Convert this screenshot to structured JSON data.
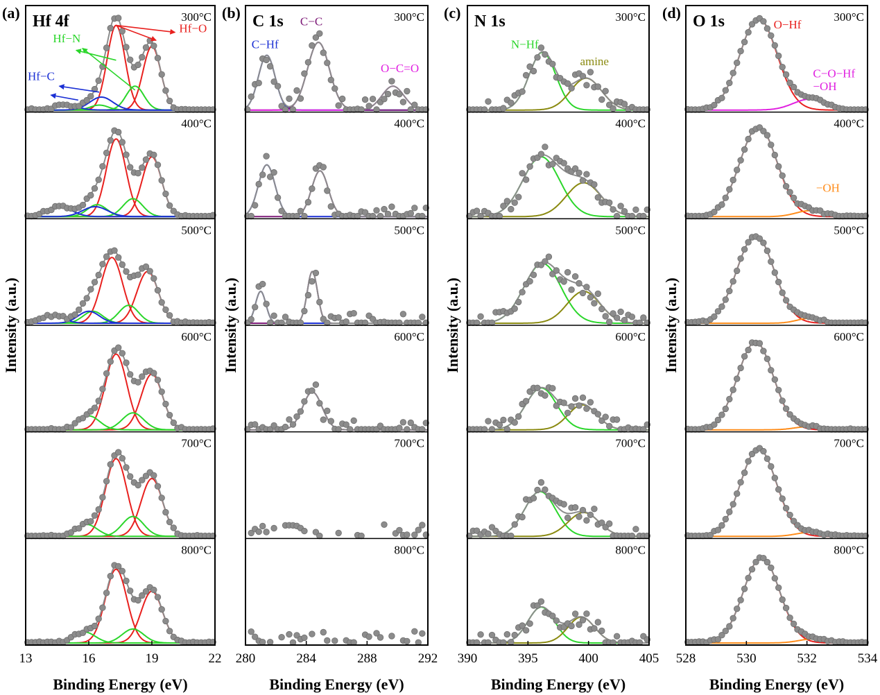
{
  "figure": {
    "background": "#ffffff",
    "frame_color": "#000000",
    "data_point_color": "#8c8c8c",
    "envelope_color": "#8c8c8c"
  },
  "temperatures": [
    "300°C",
    "400°C",
    "500°C",
    "600°C",
    "700°C",
    "800°C"
  ],
  "chart_data": [
    {
      "type": "line",
      "panel_label": "(a)",
      "title": "Hf 4f",
      "xlabel": "Binding Energy (eV)",
      "ylabel": "Intensity (a.u.)",
      "xlim": [
        13,
        22
      ],
      "xticks": [
        {
          "v": 13,
          "t": "13"
        },
        {
          "v": 16,
          "t": "16"
        },
        {
          "v": 19,
          "t": "19"
        },
        {
          "v": 22,
          "t": "22"
        }
      ],
      "temperatures": [
        "300°C",
        "400°C",
        "500°C",
        "600°C",
        "700°C",
        "800°C"
      ],
      "noise": 0.015,
      "annotations": [
        {
          "text": "Hf−O",
          "color": "#e8201e",
          "x": 20.3,
          "y": 0.78
        },
        {
          "text": "Hf−N",
          "color": "#2bd62b",
          "x": 14.3,
          "y": 0.68
        },
        {
          "text": "Hf−C",
          "color": "#1a2fd4",
          "x": 13.1,
          "y": 0.3
        }
      ],
      "arrows": [
        {
          "color": "#e8201e",
          "x1": 17.3,
          "y1": 0.85,
          "x2": 20.1,
          "y2": 0.78
        },
        {
          "color": "#e8201e",
          "x1": 17.3,
          "y1": 0.85,
          "x2": 19.2,
          "y2": 0.7
        },
        {
          "color": "#2bd62b",
          "x1": 17.3,
          "y1": 0.5,
          "x2": 15.4,
          "y2": 0.6
        },
        {
          "color": "#2bd62b",
          "x1": 18.2,
          "y1": 0.2,
          "x2": 15.7,
          "y2": 0.62
        },
        {
          "color": "#1a2fd4",
          "x1": 16.5,
          "y1": 0.18,
          "x2": 14.6,
          "y2": 0.24
        },
        {
          "color": "#1a2fd4",
          "x1": 15.5,
          "y1": 0.1,
          "x2": 14.2,
          "y2": 0.15
        }
      ],
      "spectra": [
        {
          "temperature": "300°C",
          "series": [
            {
              "name": "Hf−O 7/2",
              "color": "#e8201e",
              "center": 17.3,
              "fwhm": 1.0,
              "height": 0.85
            },
            {
              "name": "Hf−O 5/2",
              "color": "#e8201e",
              "center": 19.0,
              "fwhm": 1.0,
              "height": 0.64
            },
            {
              "name": "Hf−N 7/2",
              "color": "#2bd62b",
              "center": 16.5,
              "fwhm": 1.0,
              "height": 0.05
            },
            {
              "name": "Hf−N 5/2",
              "color": "#2bd62b",
              "center": 18.2,
              "fwhm": 1.0,
              "height": 0.24
            },
            {
              "name": "Hf−C 7/2",
              "color": "#1a2fd4",
              "center": 14.9,
              "fwhm": 1.3,
              "height": 0.05
            },
            {
              "name": "Hf−C 5/2",
              "color": "#1a2fd4",
              "center": 16.6,
              "fwhm": 1.3,
              "height": 0.13
            }
          ]
        },
        {
          "temperature": "400°C",
          "series": [
            {
              "name": "Hf−O 7/2",
              "color": "#e8201e",
              "center": 17.3,
              "fwhm": 1.1,
              "height": 0.78
            },
            {
              "name": "Hf−O 5/2",
              "color": "#e8201e",
              "center": 19.0,
              "fwhm": 1.1,
              "height": 0.6
            },
            {
              "name": "Hf−N 7/2",
              "color": "#2bd62b",
              "center": 16.4,
              "fwhm": 1.1,
              "height": 0.12
            },
            {
              "name": "Hf−N 5/2",
              "color": "#2bd62b",
              "center": 18.1,
              "fwhm": 1.1,
              "height": 0.18
            },
            {
              "name": "Hf−C 7/2",
              "color": "#1a2fd4",
              "center": 14.6,
              "fwhm": 1.4,
              "height": 0.1
            },
            {
              "name": "Hf−C 5/2",
              "color": "#1a2fd4",
              "center": 16.3,
              "fwhm": 1.4,
              "height": 0.1
            }
          ]
        },
        {
          "temperature": "500°C",
          "series": [
            {
              "name": "Hf−O 7/2",
              "color": "#e8201e",
              "center": 17.1,
              "fwhm": 1.2,
              "height": 0.66
            },
            {
              "name": "Hf−O 5/2",
              "color": "#e8201e",
              "center": 18.8,
              "fwhm": 1.2,
              "height": 0.52
            },
            {
              "name": "Hf−N 7/2",
              "color": "#2bd62b",
              "center": 16.2,
              "fwhm": 1.1,
              "height": 0.12
            },
            {
              "name": "Hf−N 5/2",
              "color": "#2bd62b",
              "center": 17.9,
              "fwhm": 1.1,
              "height": 0.18
            },
            {
              "name": "Hf−C 7/2",
              "color": "#1a2fd4",
              "center": 14.3,
              "fwhm": 1.2,
              "height": 0.08
            },
            {
              "name": "Hf−C 5/2",
              "color": "#1a2fd4",
              "center": 16.0,
              "fwhm": 1.2,
              "height": 0.12
            }
          ]
        },
        {
          "temperature": "600°C",
          "series": [
            {
              "name": "Hf−O 7/2",
              "color": "#e8201e",
              "center": 17.3,
              "fwhm": 1.2,
              "height": 0.76
            },
            {
              "name": "Hf−O 5/2",
              "color": "#e8201e",
              "center": 19.0,
              "fwhm": 1.2,
              "height": 0.56
            },
            {
              "name": "Hf−N 7/2",
              "color": "#2bd62b",
              "center": 16.0,
              "fwhm": 1.2,
              "height": 0.14
            },
            {
              "name": "Hf−N 5/2",
              "color": "#2bd62b",
              "center": 18.1,
              "fwhm": 1.2,
              "height": 0.17
            }
          ]
        },
        {
          "temperature": "700°C",
          "series": [
            {
              "name": "Hf−O 7/2",
              "color": "#e8201e",
              "center": 17.3,
              "fwhm": 1.2,
              "height": 0.78
            },
            {
              "name": "Hf−O 5/2",
              "color": "#e8201e",
              "center": 19.0,
              "fwhm": 1.2,
              "height": 0.58
            },
            {
              "name": "Hf−N 7/2",
              "color": "#2bd62b",
              "center": 15.9,
              "fwhm": 1.2,
              "height": 0.12
            },
            {
              "name": "Hf−N 5/2",
              "color": "#2bd62b",
              "center": 18.1,
              "fwhm": 1.2,
              "height": 0.2
            }
          ]
        },
        {
          "temperature": "800°C",
          "series": [
            {
              "name": "Hf−O 7/2",
              "color": "#e8201e",
              "center": 17.3,
              "fwhm": 1.2,
              "height": 0.74
            },
            {
              "name": "Hf−O 5/2",
              "color": "#e8201e",
              "center": 19.0,
              "fwhm": 1.2,
              "height": 0.52
            },
            {
              "name": "Hf−N 7/2",
              "color": "#2bd62b",
              "center": 15.8,
              "fwhm": 1.2,
              "height": 0.11
            },
            {
              "name": "Hf−N 5/2",
              "color": "#2bd62b",
              "center": 18.1,
              "fwhm": 1.2,
              "height": 0.14
            }
          ]
        }
      ]
    },
    {
      "type": "line",
      "panel_label": "(b)",
      "title": "C 1s",
      "xlabel": "Binding Energy (eV)",
      "ylabel": "Intensity (a.u.)",
      "xlim": [
        280,
        292
      ],
      "xticks": [
        {
          "v": 280,
          "t": "280"
        },
        {
          "v": 284,
          "t": "284"
        },
        {
          "v": 288,
          "t": "288"
        },
        {
          "v": 292,
          "t": "292"
        }
      ],
      "temperatures": [
        "300°C",
        "400°C",
        "500°C",
        "600°C",
        "700°C",
        "800°C"
      ],
      "noise": 0.1,
      "annotations": [
        {
          "text": "C−Hf",
          "color": "#1a2fd4",
          "x": 280.4,
          "y": 0.62
        },
        {
          "text": "C−C",
          "color": "#7d1a78",
          "x": 283.6,
          "y": 0.85
        },
        {
          "text": "O−C=O",
          "color": "#e020e0",
          "x": 288.9,
          "y": 0.38
        }
      ],
      "arrows": [],
      "spectra": [
        {
          "temperature": "300°C",
          "series": [
            {
              "name": "C−Hf",
              "color": "#1a2fd4",
              "center": 281.4,
              "fwhm": 1.3,
              "height": 0.55
            },
            {
              "name": "C−C",
              "color": "#7d1a78",
              "center": 284.8,
              "fwhm": 1.7,
              "height": 0.68
            },
            {
              "name": "O−C=O",
              "color": "#e020e0",
              "center": 289.7,
              "fwhm": 1.7,
              "height": 0.24
            }
          ]
        },
        {
          "temperature": "400°C",
          "series": [
            {
              "name": "C−Hf",
              "color": "#1a2fd4",
              "center": 281.4,
              "fwhm": 1.3,
              "height": 0.52
            },
            {
              "name": "C−C",
              "color": "#7d1a78",
              "center": 284.9,
              "fwhm": 1.3,
              "height": 0.46
            }
          ]
        },
        {
          "temperature": "500°C",
          "series": [
            {
              "name": "C−Hf",
              "color": "#1a2fd4",
              "center": 281.0,
              "fwhm": 0.8,
              "height": 0.32
            },
            {
              "name": "C−C",
              "color": "#7d1a78",
              "center": 284.4,
              "fwhm": 0.8,
              "height": 0.52
            }
          ]
        },
        {
          "temperature": "600°C",
          "series": [
            {
              "name": "C−C",
              "color": "#7d1a78",
              "center": 284.4,
              "fwhm": 1.5,
              "height": 0.38
            }
          ]
        },
        {
          "temperature": "700°C",
          "series": []
        },
        {
          "temperature": "800°C",
          "series": []
        }
      ]
    },
    {
      "type": "line",
      "panel_label": "(c)",
      "title": "N 1s",
      "xlabel": "Binding Energy (eV)",
      "ylabel": "Intensity (a.u.)",
      "xlim": [
        390,
        405
      ],
      "xticks": [
        {
          "v": 390,
          "t": "390"
        },
        {
          "v": 395,
          "t": "395"
        },
        {
          "v": 400,
          "t": "400"
        },
        {
          "v": 405,
          "t": "405"
        }
      ],
      "temperatures": [
        "300°C",
        "400°C",
        "500°C",
        "600°C",
        "700°C",
        "800°C"
      ],
      "noise": 0.09,
      "annotations": [
        {
          "text": "N−Hf",
          "color": "#2bd62b",
          "x": 393.6,
          "y": 0.62
        },
        {
          "text": "amine",
          "color": "#8a8a10",
          "x": 399.3,
          "y": 0.45
        }
      ],
      "arrows": [],
      "spectra": [
        {
          "temperature": "300°C",
          "series": [
            {
              "name": "N−Hf",
              "color": "#2bd62b",
              "center": 396.2,
              "fwhm": 2.6,
              "height": 0.58
            },
            {
              "name": "amine",
              "color": "#8a8a10",
              "center": 399.8,
              "fwhm": 3.0,
              "height": 0.32
            }
          ]
        },
        {
          "temperature": "400°C",
          "series": [
            {
              "name": "N−Hf",
              "color": "#2bd62b",
              "center": 396.1,
              "fwhm": 3.6,
              "height": 0.6
            },
            {
              "name": "amine",
              "color": "#8a8a10",
              "center": 399.6,
              "fwhm": 3.4,
              "height": 0.34
            }
          ]
        },
        {
          "temperature": "500°C",
          "series": [
            {
              "name": "N−Hf",
              "color": "#2bd62b",
              "center": 396.2,
              "fwhm": 3.6,
              "height": 0.6
            },
            {
              "name": "amine",
              "color": "#8a8a10",
              "center": 399.6,
              "fwhm": 3.2,
              "height": 0.32
            }
          ]
        },
        {
          "temperature": "600°C",
          "series": [
            {
              "name": "N−Hf",
              "color": "#2bd62b",
              "center": 396.1,
              "fwhm": 3.0,
              "height": 0.42
            },
            {
              "name": "amine",
              "color": "#8a8a10",
              "center": 399.5,
              "fwhm": 2.8,
              "height": 0.25
            }
          ]
        },
        {
          "temperature": "700°C",
          "series": [
            {
              "name": "N−Hf",
              "color": "#2bd62b",
              "center": 396.0,
              "fwhm": 3.0,
              "height": 0.45
            },
            {
              "name": "amine",
              "color": "#8a8a10",
              "center": 399.6,
              "fwhm": 3.0,
              "height": 0.24
            }
          ]
        },
        {
          "temperature": "800°C",
          "series": [
            {
              "name": "N−Hf",
              "color": "#2bd62b",
              "center": 396.1,
              "fwhm": 2.6,
              "height": 0.36
            },
            {
              "name": "amine",
              "color": "#8a8a10",
              "center": 399.4,
              "fwhm": 2.6,
              "height": 0.26
            }
          ]
        }
      ]
    },
    {
      "type": "line",
      "panel_label": "(d)",
      "title": "O 1s",
      "xlabel": "Binding Energy (eV)",
      "ylabel": "Intensity (a.u.)",
      "xlim": [
        528,
        534
      ],
      "xticks": [
        {
          "v": 528,
          "t": "528"
        },
        {
          "v": 530,
          "t": "530"
        },
        {
          "v": 532,
          "t": "532"
        },
        {
          "v": 534,
          "t": "534"
        }
      ],
      "temperatures": [
        "300°C",
        "400°C",
        "500°C",
        "600°C",
        "700°C",
        "800°C"
      ],
      "noise": 0.012,
      "annotations": [
        {
          "text": "O−Hf",
          "color": "#e8201e",
          "x": 530.9,
          "y": 0.82
        },
        {
          "text": "C−O−Hf",
          "color": "#e020e0",
          "x": 532.2,
          "y": 0.33
        },
        {
          "text": "−OH",
          "color": "#e020e0",
          "x": 532.2,
          "y": 0.2
        },
        {
          "text": "−OH",
          "color": "#ff8c1a",
          "x": 532.3,
          "y": 0.18
        }
      ],
      "arrows": [],
      "spectra": [
        {
          "temperature": "300°C",
          "series": [
            {
              "name": "O−Hf",
              "color": "#e8201e",
              "center": 530.4,
              "fwhm": 1.45,
              "height": 0.92
            },
            {
              "name": "C−O−Hf / −OH",
              "color": "#e020e0",
              "center": 532.1,
              "fwhm": 1.3,
              "height": 0.11
            }
          ]
        },
        {
          "temperature": "400°C",
          "series": [
            {
              "name": "O−Hf",
              "color": "#e8201e",
              "center": 530.4,
              "fwhm": 1.45,
              "height": 0.9
            },
            {
              "name": "−OH",
              "color": "#ff8c1a",
              "center": 532.1,
              "fwhm": 1.1,
              "height": 0.06
            }
          ]
        },
        {
          "temperature": "500°C",
          "series": [
            {
              "name": "O−Hf",
              "color": "#e8201e",
              "center": 530.3,
              "fwhm": 1.45,
              "height": 0.88
            },
            {
              "name": "−OH",
              "color": "#ff8c1a",
              "center": 532.1,
              "fwhm": 1.0,
              "height": 0.05
            }
          ]
        },
        {
          "temperature": "600°C",
          "series": [
            {
              "name": "O−Hf",
              "color": "#e8201e",
              "center": 530.3,
              "fwhm": 1.4,
              "height": 0.88
            },
            {
              "name": "−OH",
              "color": "#ff8c1a",
              "center": 532.0,
              "fwhm": 1.0,
              "height": 0.03
            }
          ]
        },
        {
          "temperature": "700°C",
          "series": [
            {
              "name": "O−Hf",
              "color": "#e8201e",
              "center": 530.4,
              "fwhm": 1.4,
              "height": 0.88
            },
            {
              "name": "−OH",
              "color": "#ff8c1a",
              "center": 532.1,
              "fwhm": 1.1,
              "height": 0.04
            }
          ]
        },
        {
          "temperature": "800°C",
          "series": [
            {
              "name": "O−Hf",
              "color": "#e8201e",
              "center": 530.5,
              "fwhm": 1.4,
              "height": 0.86
            },
            {
              "name": "−OH",
              "color": "#ff8c1a",
              "center": 532.2,
              "fwhm": 1.1,
              "height": 0.04
            }
          ]
        }
      ]
    }
  ]
}
